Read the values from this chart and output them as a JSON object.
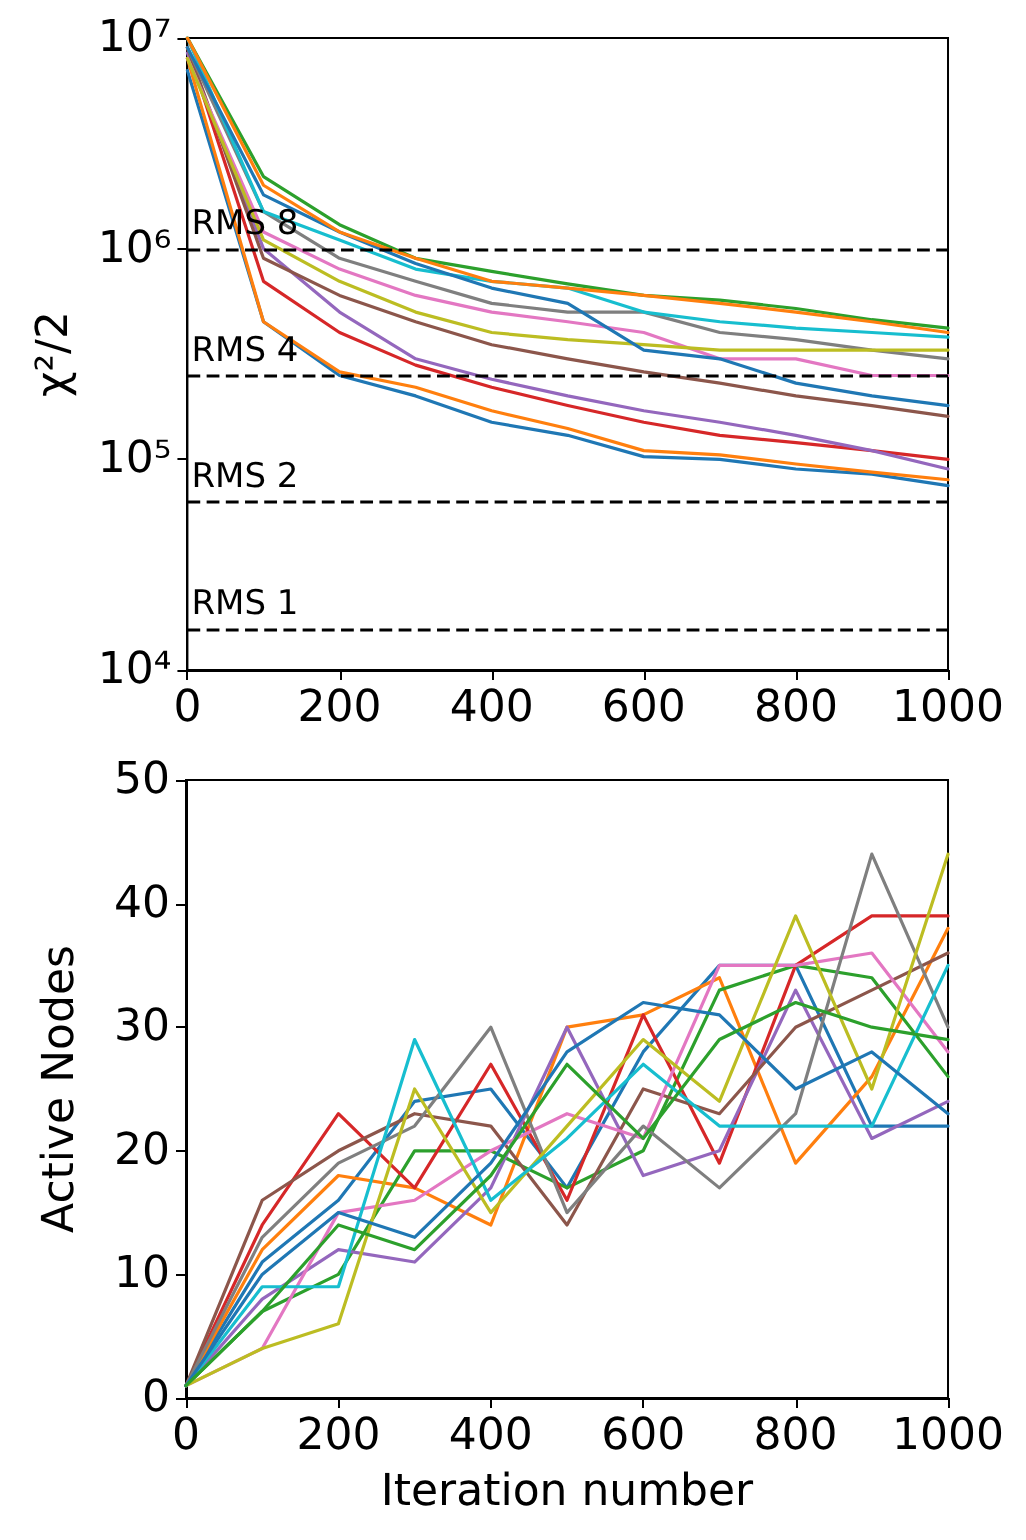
{
  "chart_data": [
    {
      "type": "line",
      "ylabel": "χ²/2",
      "log": "y",
      "x": [
        0,
        100,
        200,
        300,
        400,
        500,
        600,
        700,
        800,
        900,
        1000
      ],
      "xlim": [
        0,
        1000
      ],
      "xticks": [
        0,
        200,
        400,
        600,
        800,
        1000
      ],
      "ylim": [
        10000,
        10000000
      ],
      "yticks": [
        {
          "value": 10000,
          "label": "10⁴"
        },
        {
          "value": 100000,
          "label": "10⁵"
        },
        {
          "value": 1000000,
          "label": "10⁶"
        },
        {
          "value": 10000000,
          "label": "10⁷"
        }
      ],
      "ref_lines": [
        {
          "axis": "y",
          "value": 1000000,
          "label": "RMS 8",
          "color": "#000000",
          "line_style": "dashed"
        },
        {
          "axis": "y",
          "value": 250000,
          "label": "RMS 4",
          "color": "#000000",
          "line_style": "dashed"
        },
        {
          "axis": "y",
          "value": 63000,
          "label": "RMS 2",
          "color": "#000000",
          "line_style": "dashed"
        },
        {
          "axis": "y",
          "value": 15700,
          "label": "RMS 1",
          "color": "#000000",
          "line_style": "dashed"
        }
      ],
      "series": [
        {
          "color": "#1f77b4",
          "values": [
            7000000,
            450000,
            250000,
            200000,
            150000,
            130000,
            103000,
            100000,
            90000,
            85000,
            75000
          ]
        },
        {
          "color": "#ff7f0e",
          "values": [
            8000000,
            450000,
            260000,
            220000,
            170000,
            140000,
            110000,
            105000,
            95000,
            87000,
            80000
          ]
        },
        {
          "color": "#2ca02c",
          "values": [
            10000000,
            2200000,
            1300000,
            900000,
            780000,
            680000,
            600000,
            570000,
            520000,
            460000,
            420000
          ]
        },
        {
          "color": "#d62728",
          "values": [
            9000000,
            700000,
            400000,
            280000,
            220000,
            180000,
            150000,
            130000,
            120000,
            110000,
            100000
          ]
        },
        {
          "color": "#9467bd",
          "values": [
            8500000,
            1000000,
            500000,
            300000,
            240000,
            200000,
            170000,
            150000,
            130000,
            110000,
            90000
          ]
        },
        {
          "color": "#8c564b",
          "values": [
            9000000,
            900000,
            600000,
            450000,
            350000,
            300000,
            260000,
            230000,
            200000,
            180000,
            160000
          ]
        },
        {
          "color": "#e377c2",
          "values": [
            8000000,
            1200000,
            800000,
            600000,
            500000,
            450000,
            400000,
            300000,
            300000,
            250000,
            250000
          ]
        },
        {
          "color": "#7f7f7f",
          "values": [
            9000000,
            1500000,
            900000,
            700000,
            550000,
            500000,
            500000,
            400000,
            370000,
            330000,
            300000
          ]
        },
        {
          "color": "#bcbd22",
          "values": [
            8000000,
            1100000,
            700000,
            500000,
            400000,
            370000,
            350000,
            330000,
            330000,
            330000,
            330000
          ]
        },
        {
          "color": "#17becf",
          "values": [
            10000000,
            1500000,
            1100000,
            800000,
            700000,
            650000,
            500000,
            450000,
            420000,
            400000,
            380000
          ]
        },
        {
          "color": "#1f77b4",
          "values": [
            9000000,
            1800000,
            1200000,
            850000,
            650000,
            550000,
            330000,
            300000,
            230000,
            200000,
            180000
          ]
        },
        {
          "color": "#ff7f0e",
          "values": [
            10000000,
            2000000,
            1200000,
            900000,
            700000,
            650000,
            600000,
            550000,
            500000,
            450000,
            400000
          ]
        }
      ]
    },
    {
      "type": "line",
      "xlabel": "Iteration number",
      "ylabel": "Active Nodes",
      "x": [
        0,
        100,
        200,
        300,
        400,
        500,
        600,
        700,
        800,
        900,
        1000
      ],
      "xlim": [
        0,
        1000
      ],
      "xticks": [
        0,
        200,
        400,
        600,
        800,
        1000
      ],
      "ylim": [
        0,
        50
      ],
      "yticks": [
        0,
        10,
        20,
        30,
        40,
        50
      ],
      "series": [
        {
          "color": "#1f77b4",
          "values": [
            1,
            11,
            16,
            24,
            25,
            17,
            28,
            35,
            35,
            22,
            22
          ]
        },
        {
          "color": "#ff7f0e",
          "values": [
            1,
            12,
            18,
            17,
            14,
            30,
            31,
            34,
            19,
            26,
            38
          ]
        },
        {
          "color": "#2ca02c",
          "values": [
            1,
            7,
            10,
            20,
            20,
            17,
            20,
            33,
            35,
            34,
            26
          ]
        },
        {
          "color": "#d62728",
          "values": [
            1,
            14,
            23,
            17,
            27,
            16,
            31,
            19,
            35,
            39,
            39
          ]
        },
        {
          "color": "#9467bd",
          "values": [
            1,
            8,
            12,
            11,
            17,
            30,
            18,
            20,
            33,
            21,
            24
          ]
        },
        {
          "color": "#8c564b",
          "values": [
            1,
            16,
            20,
            23,
            22,
            14,
            25,
            23,
            30,
            33,
            36
          ]
        },
        {
          "color": "#e377c2",
          "values": [
            1,
            4,
            15,
            16,
            20,
            23,
            21,
            35,
            35,
            36,
            28
          ]
        },
        {
          "color": "#7f7f7f",
          "values": [
            1,
            13,
            19,
            22,
            30,
            15,
            22,
            17,
            23,
            44,
            30
          ]
        },
        {
          "color": "#bcbd22",
          "values": [
            1,
            4,
            6,
            25,
            15,
            22,
            29,
            24,
            39,
            25,
            44
          ]
        },
        {
          "color": "#17becf",
          "values": [
            1,
            9,
            9,
            29,
            16,
            21,
            27,
            22,
            22,
            22,
            35
          ]
        },
        {
          "color": "#1f77b4",
          "values": [
            1,
            10,
            15,
            13,
            19,
            28,
            32,
            31,
            25,
            28,
            23
          ]
        },
        {
          "color": "#2ca02c",
          "values": [
            1,
            7,
            14,
            12,
            18,
            27,
            21,
            29,
            32,
            30,
            29
          ]
        }
      ]
    }
  ]
}
